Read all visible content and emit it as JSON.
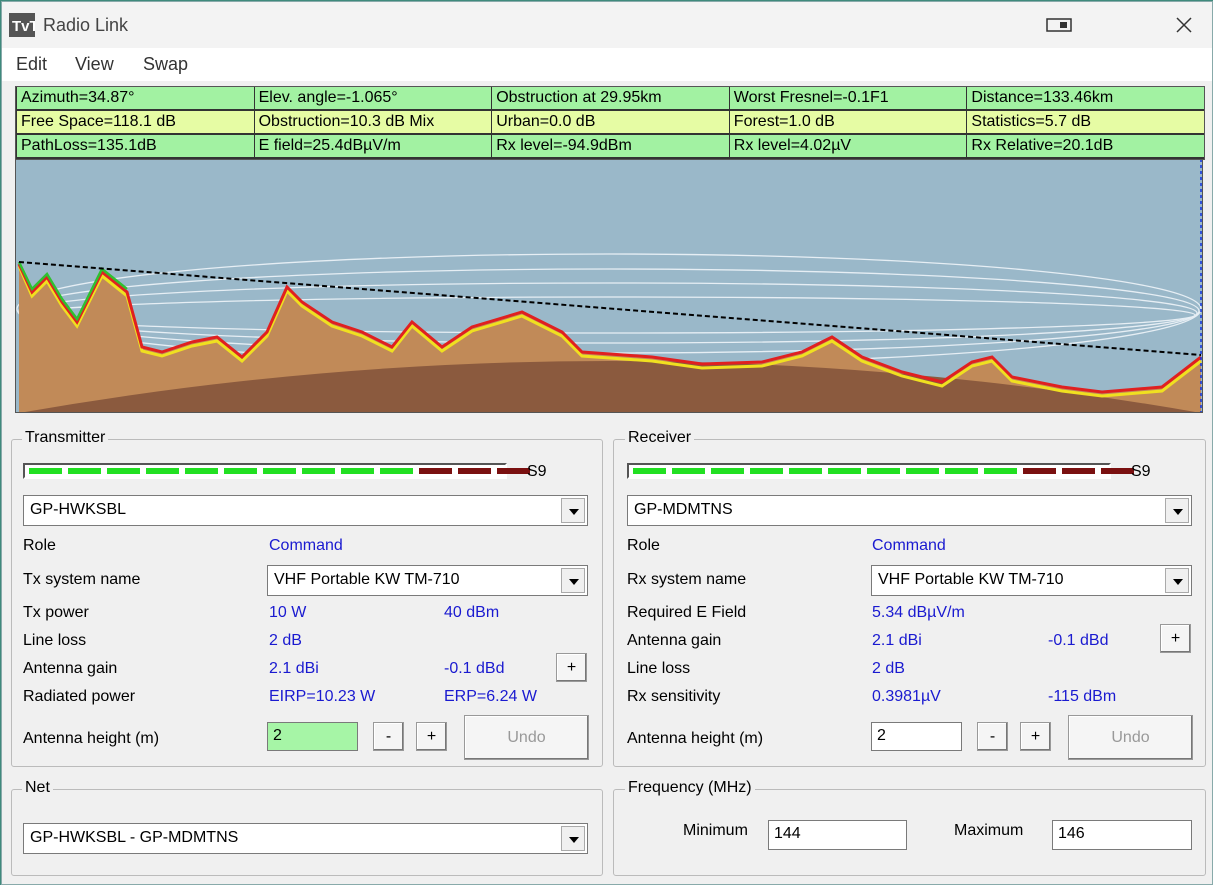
{
  "window": {
    "title": "Radio Link"
  },
  "menu": [
    "Edit",
    "View",
    "Swap"
  ],
  "stats": [
    [
      "Azimuth=34.87°",
      "Elev. angle=-1.065°",
      "Obstruction at 29.95km",
      "Worst Fresnel=-0.1F1",
      "Distance=133.46km"
    ],
    [
      "Free Space=118.1 dB",
      "Obstruction=10.3 dB Mix",
      "Urban=0.0 dB",
      "Forest=1.0 dB",
      "Statistics=5.7 dB"
    ],
    [
      "PathLoss=135.1dB",
      "E field=25.4dBµV/m",
      "Rx level=-94.9dBm",
      "Rx level=4.02µV",
      "Rx Relative=20.1dB"
    ]
  ],
  "transmitter": {
    "label": "Transmitter",
    "s_meter": "S9",
    "station": "GP-HWKSBL",
    "role": {
      "label": "Role",
      "value": "Command"
    },
    "system": {
      "label": "Tx system name",
      "value": "VHF Portable KW TM-710"
    },
    "power": {
      "label": "Tx power",
      "value": "10 W",
      "value2": "40 dBm"
    },
    "line_loss": {
      "label": "Line loss",
      "value": "2 dB"
    },
    "antenna_gain": {
      "label": "Antenna gain",
      "value": "2.1 dBi",
      "value2": "-0.1 dBd",
      "button": "+"
    },
    "radiated_power": {
      "label": "Radiated power",
      "value": "EIRP=10.23 W",
      "value2": "ERP=6.24 W"
    },
    "antenna_height": {
      "label": "Antenna height (m)",
      "value": "2",
      "minus": "-",
      "plus": "+",
      "undo": "Undo"
    }
  },
  "receiver": {
    "label": "Receiver",
    "s_meter": "S9",
    "station": "GP-MDMTNS",
    "role": {
      "label": "Role",
      "value": "Command"
    },
    "system": {
      "label": "Rx system name",
      "value": "VHF Portable KW TM-710"
    },
    "required_field": {
      "label": "Required E Field",
      "value": "5.34 dBµV/m"
    },
    "antenna_gain": {
      "label": "Antenna gain",
      "value": "2.1 dBi",
      "value2": "-0.1 dBd",
      "button": "+"
    },
    "line_loss": {
      "label": "Line loss",
      "value": "2 dB"
    },
    "sensitivity": {
      "label": "Rx sensitivity",
      "value": "0.3981µV",
      "value2": "-115 dBm"
    },
    "antenna_height": {
      "label": "Antenna height (m)",
      "value": "2",
      "minus": "-",
      "plus": "+",
      "undo": "Undo"
    }
  },
  "net": {
    "label": "Net",
    "value": "GP-HWKSBL - GP-MDMTNS"
  },
  "frequency": {
    "label": "Frequency (MHz)",
    "min_label": "Minimum",
    "min": "144",
    "max_label": "Maximum",
    "max": "146"
  }
}
